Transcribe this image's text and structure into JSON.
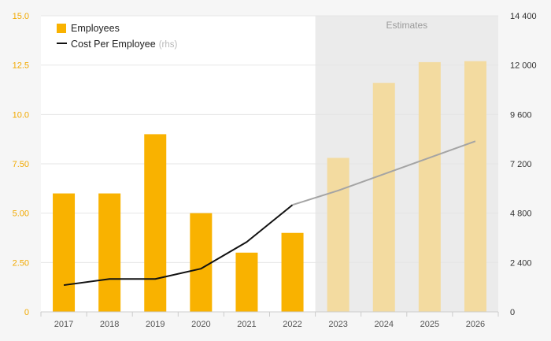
{
  "chart_data": {
    "type": "bar",
    "categories": [
      "2017",
      "2018",
      "2019",
      "2020",
      "2021",
      "2022",
      "2023",
      "2024",
      "2025",
      "2026"
    ],
    "series": [
      {
        "name": "Employees",
        "kind": "bar",
        "axis": "left",
        "values": [
          6.0,
          6.0,
          9.0,
          5.0,
          3.0,
          4.0,
          7.8,
          11.6,
          12.65,
          12.7
        ],
        "estimated_from_index": 6
      },
      {
        "name": "Cost Per Employee",
        "legend_note": "(rhs)",
        "kind": "line",
        "axis": "right",
        "values": [
          1300,
          1600,
          1600,
          2100,
          3400,
          5200,
          5900,
          6700,
          7500,
          8300
        ],
        "estimated_from_index": 5
      }
    ],
    "y_left": {
      "ticks": [
        "0",
        "2.50",
        "5.00",
        "7.50",
        "10.0",
        "12.5",
        "15.0"
      ],
      "ylim": [
        0,
        15
      ]
    },
    "y_right": {
      "ticks": [
        "0",
        "2 400",
        "4 800",
        "7 200",
        "9 600",
        "12 000",
        "14 400"
      ],
      "ylim": [
        0,
        14400
      ]
    },
    "shaded_region": {
      "label": "Estimates",
      "from_category": "2023",
      "to_category": "2026"
    },
    "legend_position": "top-left",
    "grid": true,
    "colors": {
      "bar": "#f9b200",
      "bar_estimate": "#f3dba0",
      "line": "#111111",
      "line_estimate": "#a4a4a4",
      "shade": "#ebebeb",
      "left_axis_text": "#f2a900"
    }
  }
}
